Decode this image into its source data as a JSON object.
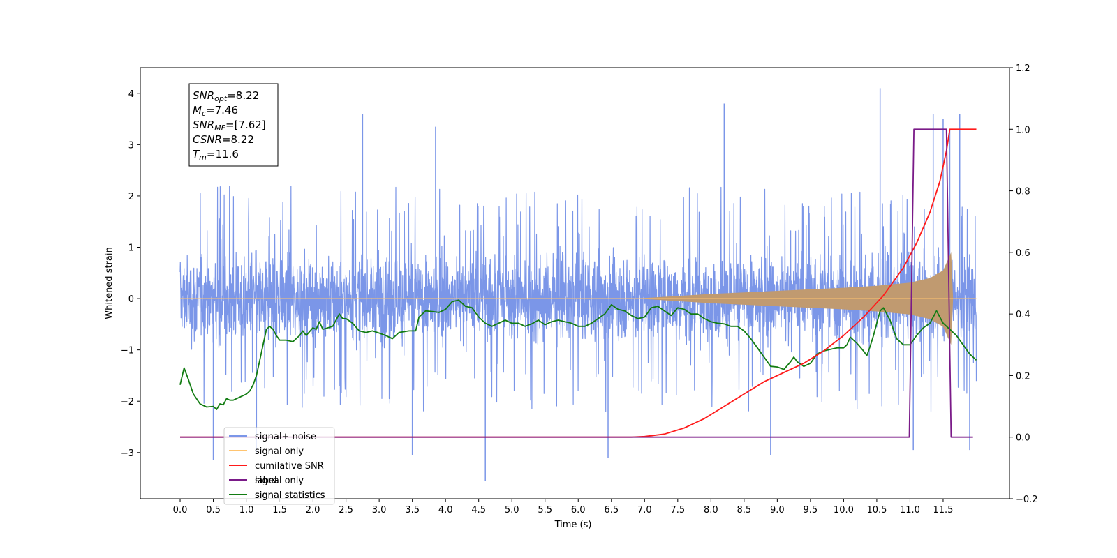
{
  "chart_data": {
    "type": "line",
    "xlabel": "Time (s)",
    "ylabel": "Whitened strain",
    "xlim": [
      -0.6,
      12.5
    ],
    "ylim_left": [
      -3.9,
      4.5
    ],
    "ylim_right": [
      -0.2,
      1.2
    ],
    "x_ticks": [
      "0.0",
      "0.5",
      "1.0",
      "1.5",
      "2.0",
      "2.5",
      "3.0",
      "3.5",
      "4.0",
      "4.5",
      "5.0",
      "5.5",
      "6.0",
      "6.5",
      "7.0",
      "7.5",
      "8.0",
      "8.5",
      "9.0",
      "9.5",
      "10.0",
      "10.5",
      "11.0",
      "11.5"
    ],
    "y_ticks_left": [
      "−3",
      "−2",
      "−1",
      "0",
      "1",
      "2",
      "3",
      "4"
    ],
    "y_ticks_right": [
      "−0.2",
      "0.0",
      "0.2",
      "0.4",
      "0.6",
      "0.8",
      "1.0",
      "1.2"
    ],
    "annotation": {
      "lines": [
        {
          "base": "SNR",
          "sub": "opt",
          "value": "=8.22"
        },
        {
          "base": "M",
          "sub": "c",
          "value": "=7.46"
        },
        {
          "base": "SNR",
          "sub": "MF",
          "value": "=[7.62]"
        },
        {
          "base": "CSNR",
          "sub": "",
          "value": "=8.22"
        },
        {
          "base": "T",
          "sub": "m",
          "value": "=11.6"
        }
      ]
    },
    "legend": {
      "position": "lower-left",
      "entries": [
        {
          "label": "signal+ noise",
          "color": "#7b96e8"
        },
        {
          "label": "signal only",
          "color": "#ffc470"
        },
        {
          "label": "cumilative SNR",
          "color": "#ff1a1a"
        },
        {
          "label": "label",
          "color": "#7a1a88"
        },
        {
          "label": "signal statistics",
          "color": "#127c12"
        }
      ],
      "hidden_text": [
        "signal only",
        "signal statistics"
      ]
    },
    "series": [
      {
        "name": "signal+ noise",
        "axis": "left",
        "color": "#7b96e8",
        "x_range": [
          0.0,
          12.0
        ],
        "band_typical": [
          -1.75,
          1.75
        ],
        "spikes": [
          [
            2.75,
            3.6
          ],
          [
            3.85,
            3.35
          ],
          [
            8.2,
            3.8
          ],
          [
            10.55,
            4.1
          ],
          [
            11.35,
            3.6
          ],
          [
            11.5,
            3.5
          ],
          [
            11.6,
            3.3
          ],
          [
            11.75,
            3.6
          ],
          [
            0.5,
            -3.15
          ],
          [
            1.15,
            -3.0
          ],
          [
            3.5,
            -3.05
          ],
          [
            4.6,
            -3.55
          ],
          [
            6.45,
            -3.1
          ],
          [
            8.9,
            -3.05
          ],
          [
            11.05,
            -2.95
          ],
          [
            11.9,
            -2.95
          ]
        ]
      },
      {
        "name": "signal only",
        "axis": "left",
        "color": "#ffc470",
        "envelope": [
          [
            0.0,
            0.0
          ],
          [
            6.8,
            0.0
          ],
          [
            7.0,
            0.01
          ],
          [
            7.5,
            0.05
          ],
          [
            8.0,
            0.09
          ],
          [
            8.5,
            0.12
          ],
          [
            9.0,
            0.15
          ],
          [
            9.5,
            0.18
          ],
          [
            10.0,
            0.21
          ],
          [
            10.5,
            0.25
          ],
          [
            11.0,
            0.31
          ],
          [
            11.3,
            0.4
          ],
          [
            11.5,
            0.55
          ],
          [
            11.62,
            0.9
          ],
          [
            11.65,
            0.0
          ],
          [
            12.0,
            0.0
          ]
        ]
      },
      {
        "name": "cumilative SNR",
        "axis": "right",
        "color": "#ff1a1a",
        "points": [
          [
            0.0,
            0.0
          ],
          [
            6.5,
            0.0
          ],
          [
            6.8,
            0.0
          ],
          [
            7.0,
            0.002
          ],
          [
            7.3,
            0.01
          ],
          [
            7.6,
            0.03
          ],
          [
            7.9,
            0.06
          ],
          [
            8.2,
            0.1
          ],
          [
            8.5,
            0.14
          ],
          [
            8.8,
            0.18
          ],
          [
            9.1,
            0.21
          ],
          [
            9.4,
            0.24
          ],
          [
            9.7,
            0.28
          ],
          [
            10.0,
            0.33
          ],
          [
            10.3,
            0.39
          ],
          [
            10.6,
            0.46
          ],
          [
            10.9,
            0.55
          ],
          [
            11.1,
            0.63
          ],
          [
            11.3,
            0.73
          ],
          [
            11.45,
            0.83
          ],
          [
            11.55,
            0.93
          ],
          [
            11.6,
            1.0
          ],
          [
            12.0,
            1.0
          ]
        ]
      },
      {
        "name": "label",
        "axis": "right",
        "color": "#7a1a88",
        "points": [
          [
            0.0,
            0.0
          ],
          [
            10.99,
            0.0
          ],
          [
            11.06,
            1.0
          ],
          [
            11.55,
            1.0
          ],
          [
            11.62,
            0.0
          ],
          [
            11.95,
            0.0
          ]
        ]
      },
      {
        "name": "signal statistics",
        "axis": "right",
        "color": "#127c12",
        "points": [
          [
            0.0,
            0.17
          ],
          [
            0.06,
            0.225
          ],
          [
            0.12,
            0.19
          ],
          [
            0.2,
            0.14
          ],
          [
            0.3,
            0.108
          ],
          [
            0.4,
            0.098
          ],
          [
            0.5,
            0.1
          ],
          [
            0.55,
            0.09
          ],
          [
            0.6,
            0.108
          ],
          [
            0.65,
            0.105
          ],
          [
            0.7,
            0.125
          ],
          [
            0.75,
            0.12
          ],
          [
            0.8,
            0.12
          ],
          [
            0.9,
            0.13
          ],
          [
            1.0,
            0.14
          ],
          [
            1.05,
            0.15
          ],
          [
            1.1,
            0.17
          ],
          [
            1.15,
            0.2
          ],
          [
            1.2,
            0.25
          ],
          [
            1.25,
            0.3
          ],
          [
            1.3,
            0.35
          ],
          [
            1.35,
            0.36
          ],
          [
            1.4,
            0.35
          ],
          [
            1.45,
            0.33
          ],
          [
            1.5,
            0.315
          ],
          [
            1.6,
            0.315
          ],
          [
            1.7,
            0.31
          ],
          [
            1.8,
            0.33
          ],
          [
            1.85,
            0.345
          ],
          [
            1.9,
            0.33
          ],
          [
            2.0,
            0.355
          ],
          [
            2.05,
            0.35
          ],
          [
            2.1,
            0.375
          ],
          [
            2.15,
            0.35
          ],
          [
            2.3,
            0.36
          ],
          [
            2.4,
            0.4
          ],
          [
            2.45,
            0.385
          ],
          [
            2.5,
            0.385
          ],
          [
            2.6,
            0.37
          ],
          [
            2.7,
            0.345
          ],
          [
            2.8,
            0.34
          ],
          [
            2.9,
            0.345
          ],
          [
            3.0,
            0.338
          ],
          [
            3.1,
            0.33
          ],
          [
            3.2,
            0.32
          ],
          [
            3.3,
            0.34
          ],
          [
            3.45,
            0.345
          ],
          [
            3.55,
            0.345
          ],
          [
            3.6,
            0.39
          ],
          [
            3.7,
            0.41
          ],
          [
            3.8,
            0.408
          ],
          [
            3.9,
            0.405
          ],
          [
            4.0,
            0.415
          ],
          [
            4.1,
            0.44
          ],
          [
            4.2,
            0.445
          ],
          [
            4.3,
            0.425
          ],
          [
            4.4,
            0.42
          ],
          [
            4.5,
            0.39
          ],
          [
            4.6,
            0.37
          ],
          [
            4.7,
            0.36
          ],
          [
            4.8,
            0.37
          ],
          [
            4.9,
            0.38
          ],
          [
            5.0,
            0.37
          ],
          [
            5.1,
            0.37
          ],
          [
            5.2,
            0.36
          ],
          [
            5.3,
            0.368
          ],
          [
            5.4,
            0.38
          ],
          [
            5.5,
            0.365
          ],
          [
            5.6,
            0.375
          ],
          [
            5.7,
            0.38
          ],
          [
            5.8,
            0.375
          ],
          [
            5.9,
            0.37
          ],
          [
            6.0,
            0.36
          ],
          [
            6.1,
            0.36
          ],
          [
            6.2,
            0.37
          ],
          [
            6.3,
            0.385
          ],
          [
            6.4,
            0.4
          ],
          [
            6.5,
            0.43
          ],
          [
            6.6,
            0.415
          ],
          [
            6.7,
            0.41
          ],
          [
            6.8,
            0.395
          ],
          [
            6.9,
            0.385
          ],
          [
            7.0,
            0.39
          ],
          [
            7.1,
            0.42
          ],
          [
            7.2,
            0.425
          ],
          [
            7.3,
            0.41
          ],
          [
            7.4,
            0.395
          ],
          [
            7.5,
            0.42
          ],
          [
            7.6,
            0.415
          ],
          [
            7.7,
            0.4
          ],
          [
            7.8,
            0.4
          ],
          [
            7.9,
            0.385
          ],
          [
            8.0,
            0.375
          ],
          [
            8.1,
            0.37
          ],
          [
            8.2,
            0.368
          ],
          [
            8.3,
            0.36
          ],
          [
            8.4,
            0.36
          ],
          [
            8.5,
            0.345
          ],
          [
            8.6,
            0.32
          ],
          [
            8.7,
            0.29
          ],
          [
            8.8,
            0.26
          ],
          [
            8.9,
            0.23
          ],
          [
            9.0,
            0.228
          ],
          [
            9.1,
            0.22
          ],
          [
            9.2,
            0.245
          ],
          [
            9.25,
            0.26
          ],
          [
            9.3,
            0.245
          ],
          [
            9.4,
            0.23
          ],
          [
            9.5,
            0.24
          ],
          [
            9.6,
            0.27
          ],
          [
            9.7,
            0.28
          ],
          [
            9.8,
            0.285
          ],
          [
            9.9,
            0.29
          ],
          [
            10.0,
            0.29
          ],
          [
            10.05,
            0.3
          ],
          [
            10.1,
            0.325
          ],
          [
            10.2,
            0.305
          ],
          [
            10.3,
            0.28
          ],
          [
            10.35,
            0.265
          ],
          [
            10.4,
            0.295
          ],
          [
            10.45,
            0.33
          ],
          [
            10.5,
            0.37
          ],
          [
            10.55,
            0.41
          ],
          [
            10.6,
            0.42
          ],
          [
            10.7,
            0.38
          ],
          [
            10.8,
            0.32
          ],
          [
            10.9,
            0.3
          ],
          [
            11.0,
            0.3
          ],
          [
            11.1,
            0.33
          ],
          [
            11.2,
            0.355
          ],
          [
            11.3,
            0.37
          ],
          [
            11.4,
            0.41
          ],
          [
            11.5,
            0.37
          ],
          [
            11.6,
            0.35
          ],
          [
            11.7,
            0.33
          ],
          [
            11.8,
            0.3
          ],
          [
            11.9,
            0.27
          ],
          [
            12.0,
            0.25
          ]
        ]
      }
    ]
  }
}
